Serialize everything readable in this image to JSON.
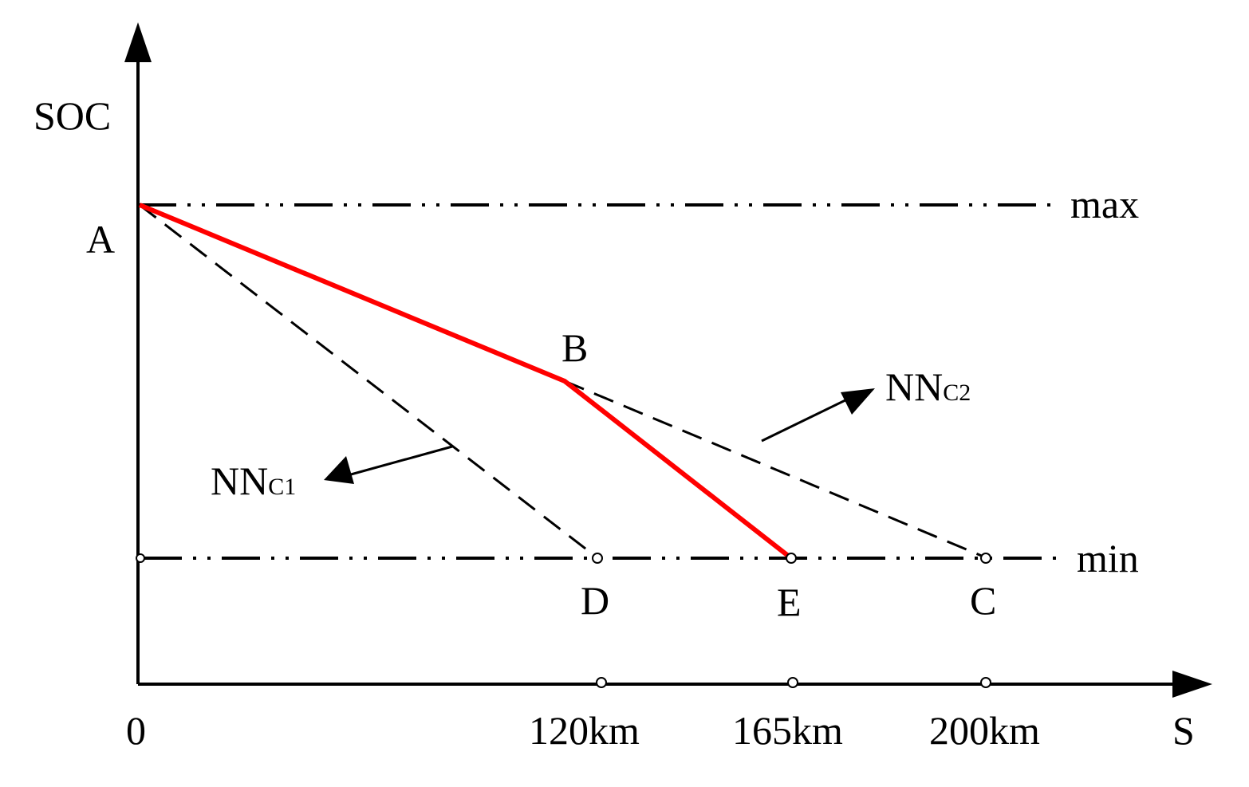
{
  "axes": {
    "y_label": "SOC",
    "x_label": "S",
    "origin_label": "0",
    "x_ticks": [
      "120km",
      "165km",
      "200km"
    ]
  },
  "levels": {
    "max_label": "max",
    "min_label": "min"
  },
  "points": {
    "a": "A",
    "b": "B",
    "c": "C",
    "d": "D",
    "e": "E"
  },
  "callouts": {
    "nn_c1_main": "NN",
    "nn_c1_sub": "C1",
    "nn_c2_main": "NN",
    "nn_c2_sub": "C2"
  },
  "colors": {
    "actual_path": "#ff0000",
    "lines": "#000000"
  }
}
